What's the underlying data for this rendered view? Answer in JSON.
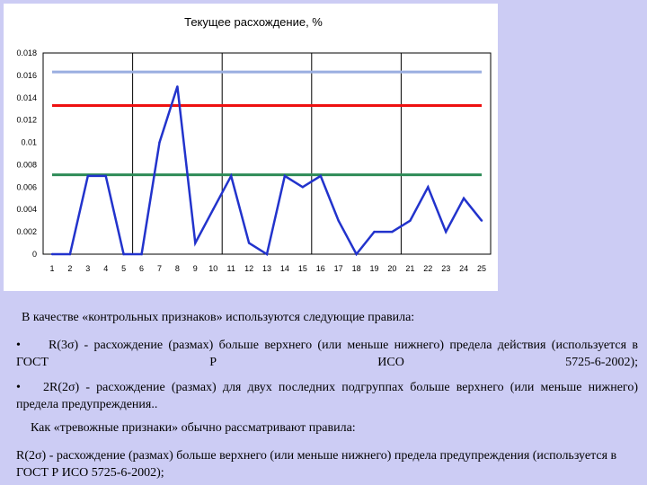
{
  "chart_data": {
    "type": "line",
    "title": "Текущее расхождение, %",
    "xlabel": "",
    "ylabel": "",
    "categories": [
      "1",
      "2",
      "3",
      "4",
      "5",
      "6",
      "7",
      "8",
      "9",
      "10",
      "11",
      "12",
      "13",
      "14",
      "15",
      "16",
      "17",
      "18",
      "19",
      "20",
      "21",
      "22",
      "23",
      "24",
      "25"
    ],
    "ylim": [
      0,
      0.018
    ],
    "yticks": [
      "0",
      "0.002",
      "0.004",
      "0.006",
      "0.008",
      "0.01",
      "0.012",
      "0.014",
      "0.016",
      "0.018"
    ],
    "grid": "vertical lines every 5 categories",
    "legend": "none",
    "series": [
      {
        "color": "#2233cc",
        "values": [
          0,
          0,
          0.007,
          0.007,
          0,
          0,
          0.01,
          0.015,
          0.001,
          0.004,
          0.007,
          0.001,
          0,
          0.007,
          0.006,
          0.007,
          0.003,
          0,
          0.002,
          0.002,
          0.003,
          0.006,
          0.002,
          0.005,
          0.003
        ]
      }
    ],
    "reference_lines": [
      {
        "value": 0.0163,
        "color": "#9aaee0"
      },
      {
        "value": 0.0133,
        "color": "#ee1111"
      },
      {
        "value": 0.0071,
        "color": "#2e8b57"
      }
    ]
  },
  "text": {
    "intro": "В качестве «контрольных признаков» используются следующие правила:",
    "rule1": "R(3σ) - расхождение (размах) больше верхнего (или меньше нижнего) предела действия (используется в ГОСТ Р ИСО 5725-6-2002);",
    "rule2": "2R(2σ) - расхождение (размах) для двух последних подгруппах больше верхнего (или меньше нижнего) предела предупреждения..",
    "warning_intro": "Как «тревожные признаки» обычно рассматривают правила:",
    "rule3": "R(2σ) - расхождение (размах) больше верхнего (или меньше нижнего) предела предупреждения (используется в ГОСТ Р ИСО 5725-6-2002);",
    "bullet": "•"
  }
}
